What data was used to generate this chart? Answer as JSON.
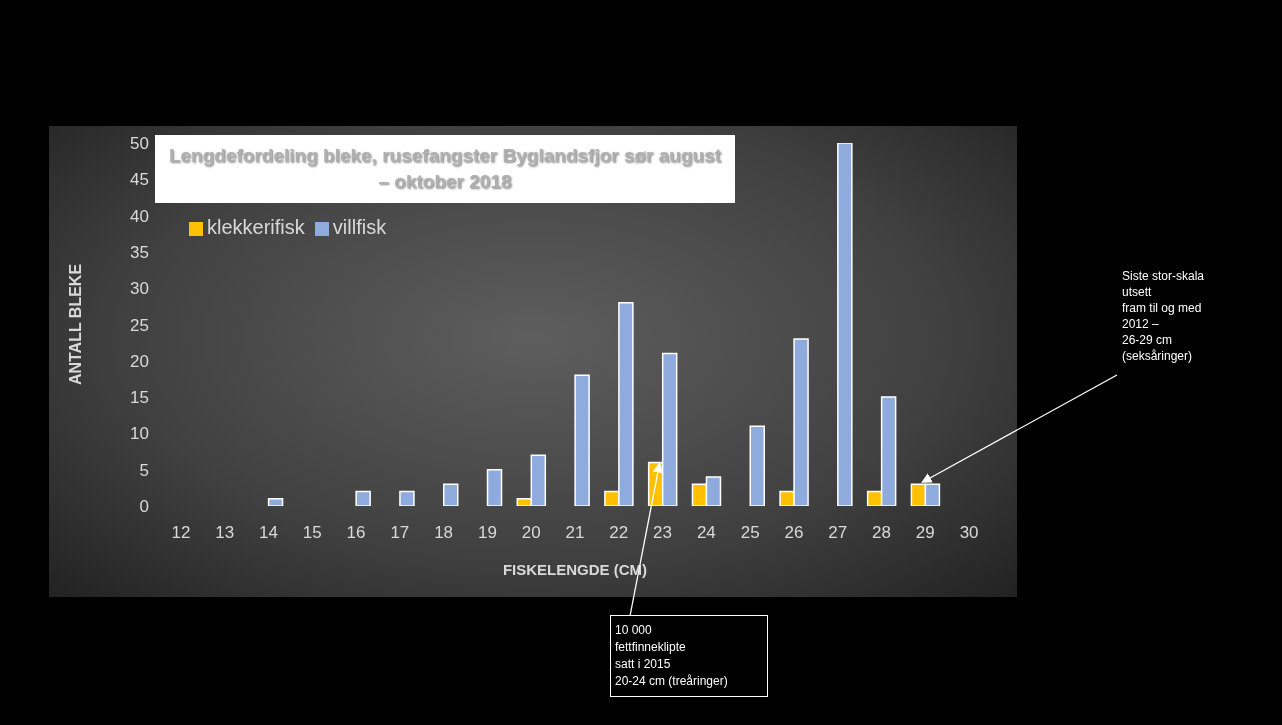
{
  "chart_data": {
    "type": "bar",
    "title": "Lengdefordeling bleke, rusefangster Byglandsfjor sør august – oktober 2018",
    "xlabel": "FISKELENGDE (CM)",
    "ylabel": "ANTALL BLEKE",
    "categories": [
      "12",
      "13",
      "14",
      "15",
      "16",
      "17",
      "18",
      "19",
      "20",
      "21",
      "22",
      "23",
      "24",
      "25",
      "26",
      "27",
      "28",
      "29",
      "30"
    ],
    "series": [
      {
        "name": "klekkerifisk",
        "color": "#ffc000",
        "values": [
          0,
          0,
          0,
          0,
          0,
          0,
          0,
          0,
          1,
          0,
          2,
          6,
          3,
          0,
          2,
          0,
          2,
          3,
          0
        ]
      },
      {
        "name": "villfisk",
        "color": "#8faadc",
        "values": [
          0,
          0,
          1,
          0,
          2,
          2,
          3,
          5,
          7,
          18,
          28,
          21,
          4,
          11,
          23,
          50,
          15,
          3,
          0
        ]
      }
    ],
    "ylim": [
      0,
      50
    ],
    "yticks": [
      0,
      5,
      10,
      15,
      20,
      25,
      30,
      35,
      40,
      45,
      50
    ],
    "grid": false,
    "legend": "top left",
    "annotations": [
      {
        "text": "10 000\nfettfinneklipte\nsatt i 2015\n20-24 cm (treåringer)",
        "x": "23",
        "y": 6
      },
      {
        "text": "Siste stor-skala\nutsett\nfram til og med\n2012 –\n26-29 cm\n(seksåringer)",
        "x": "29",
        "y": 3
      }
    ]
  }
}
